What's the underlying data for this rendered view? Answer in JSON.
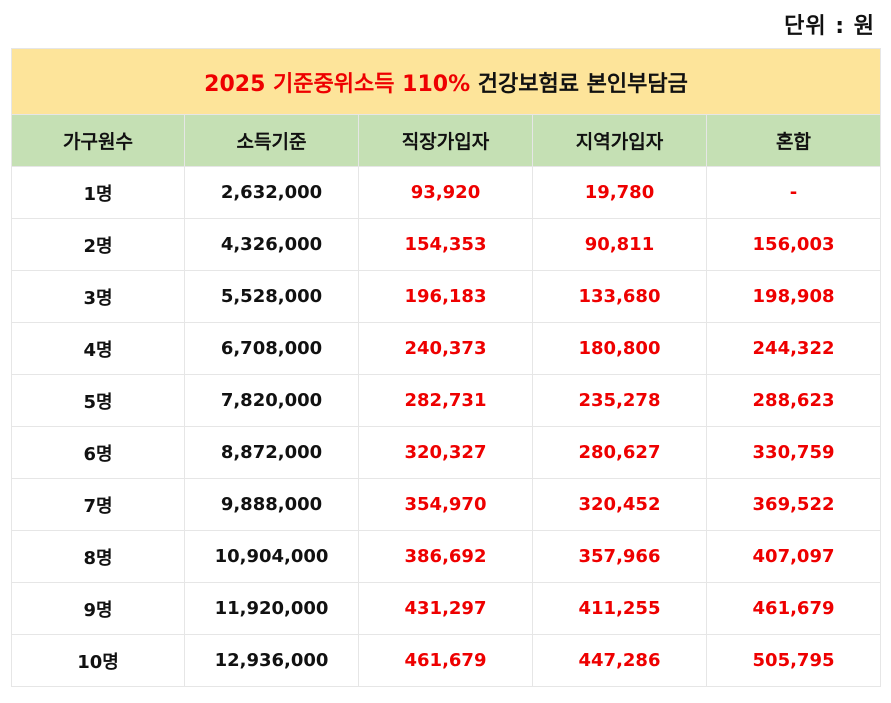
{
  "unit_label": "단위 : 원",
  "title": {
    "highlight": "2025 기준중위소득 110%",
    "rest": " 건강보험료 본인부담금"
  },
  "columns": [
    "가구원수",
    "소득기준",
    "직장가입자",
    "지역가입자",
    "혼합"
  ],
  "rows": [
    {
      "members": "1명",
      "income": "2,632,000",
      "employee": "93,920",
      "regional": "19,780",
      "mixed": "-"
    },
    {
      "members": "2명",
      "income": "4,326,000",
      "employee": "154,353",
      "regional": "90,811",
      "mixed": "156,003"
    },
    {
      "members": "3명",
      "income": "5,528,000",
      "employee": "196,183",
      "regional": "133,680",
      "mixed": "198,908"
    },
    {
      "members": "4명",
      "income": "6,708,000",
      "employee": "240,373",
      "regional": "180,800",
      "mixed": "244,322"
    },
    {
      "members": "5명",
      "income": "7,820,000",
      "employee": "282,731",
      "regional": "235,278",
      "mixed": "288,623"
    },
    {
      "members": "6명",
      "income": "8,872,000",
      "employee": "320,327",
      "regional": "280,627",
      "mixed": "330,759"
    },
    {
      "members": "7명",
      "income": "9,888,000",
      "employee": "354,970",
      "regional": "320,452",
      "mixed": "369,522"
    },
    {
      "members": "8명",
      "income": "10,904,000",
      "employee": "386,692",
      "regional": "357,966",
      "mixed": "407,097"
    },
    {
      "members": "9명",
      "income": "11,920,000",
      "employee": "431,297",
      "regional": "411,255",
      "mixed": "461,679"
    },
    {
      "members": "10명",
      "income": "12,936,000",
      "employee": "461,679",
      "regional": "447,286",
      "mixed": "505,795"
    }
  ],
  "colors": {
    "title_bg": "#fde49a",
    "header_bg": "#c5e0b4",
    "value_red": "#ee0000",
    "text_dark": "#111111"
  }
}
